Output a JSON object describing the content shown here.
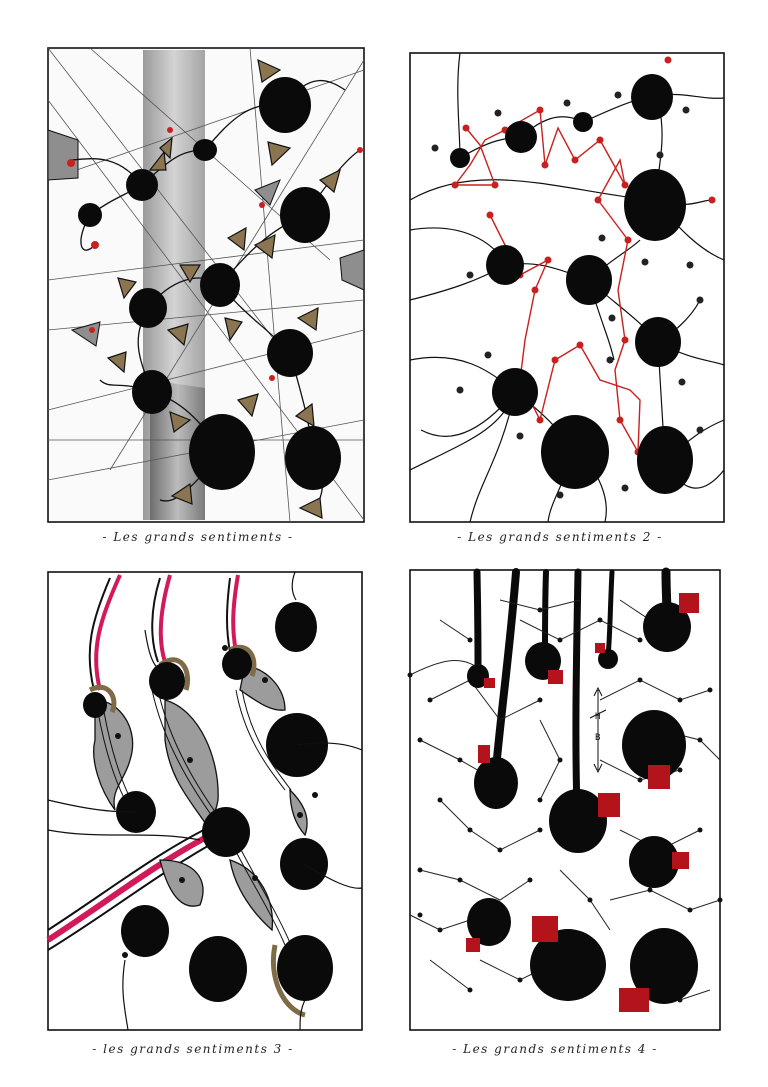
{
  "panels": [
    {
      "caption": "- Les grands sentiments -"
    },
    {
      "caption": "- Les grands sentiments 2 -"
    },
    {
      "caption": "- les grands sentiments 3 -"
    },
    {
      "caption": "- Les grands sentiments 4 -"
    }
  ],
  "panel4_marks": {
    "top": "H",
    "bottom": "B"
  },
  "colors": {
    "ink": "#0a0a0a",
    "accent_red": "#c8201e",
    "pink": "#d2195a",
    "olive": "#7f6b45",
    "grey": "#9c9c9c",
    "dark_red": "#b3141b"
  }
}
